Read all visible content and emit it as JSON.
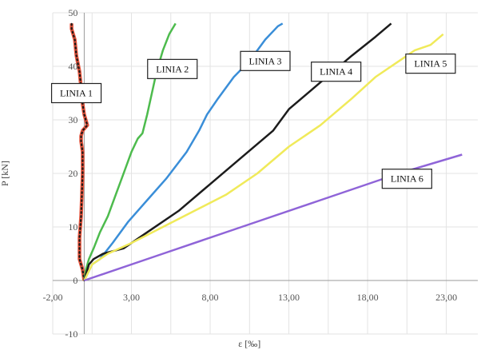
{
  "chart_data": {
    "type": "line",
    "title": "",
    "xlabel": "ε [‰]",
    "ylabel": "P [kN]",
    "xlim": [
      -2,
      25
    ],
    "ylim": [
      -10,
      50
    ],
    "x_ticks": [
      -2,
      3,
      8,
      13,
      18,
      23
    ],
    "x_tick_labels": [
      "-2,00",
      "3,00",
      "8,00",
      "13,00",
      "18,00",
      "23,00"
    ],
    "y_ticks": [
      -10,
      0,
      10,
      20,
      30,
      40,
      50
    ],
    "y_tick_labels": [
      "-10",
      "0",
      "10",
      "20",
      "30",
      "40",
      "50"
    ],
    "grid": true,
    "legend": "labels on lines",
    "series": [
      {
        "name": "LINIA 1",
        "color": "#e8553d",
        "dashed": true,
        "x": [
          0.0,
          -0.1,
          -0.3,
          -0.3,
          -0.2,
          -0.15,
          -0.1,
          -0.1,
          -0.2,
          -0.2,
          -0.1,
          0.2,
          0.0,
          -0.1,
          -0.2,
          -0.3,
          -0.5,
          -0.6,
          -0.8,
          -0.8
        ],
        "y": [
          0.0,
          2.0,
          4.0,
          8.0,
          12.0,
          16.0,
          20.0,
          24.0,
          26.0,
          27.0,
          28.0,
          29.0,
          31.0,
          33.0,
          36.0,
          39.0,
          42.0,
          45.0,
          47.0,
          48.0
        ]
      },
      {
        "name": "LINIA 2",
        "color": "#4dbb4d",
        "x": [
          0.0,
          0.1,
          0.3,
          0.6,
          1.0,
          1.5,
          2.0,
          2.5,
          3.0,
          3.4,
          3.7,
          4.0,
          4.3,
          4.6,
          5.0,
          5.4,
          5.8
        ],
        "y": [
          0.0,
          2.0,
          4.0,
          6.0,
          9.0,
          12.0,
          16.0,
          20.0,
          24.0,
          26.5,
          27.5,
          31.0,
          35.0,
          39.0,
          43.0,
          46.0,
          48.0
        ]
      },
      {
        "name": "LINIA 3",
        "color": "#3a8ed8",
        "x": [
          0.0,
          0.5,
          1.0,
          1.8,
          2.8,
          4.0,
          5.2,
          6.5,
          7.3,
          7.8,
          8.5,
          9.5,
          10.5,
          11.5,
          12.3,
          12.6
        ],
        "y": [
          0.0,
          3.0,
          4.0,
          7.0,
          11.0,
          15.0,
          19.0,
          24.0,
          28.0,
          31.0,
          34.0,
          38.0,
          41.0,
          45.0,
          47.5,
          48.0
        ]
      },
      {
        "name": "LINIA 4",
        "color": "#1c1c1c",
        "x": [
          0.0,
          0.3,
          0.6,
          1.2,
          2.5,
          4.0,
          6.0,
          8.0,
          10.0,
          12.0,
          13.0,
          15.0,
          17.0,
          18.5,
          19.5
        ],
        "y": [
          0.0,
          3.0,
          4.0,
          5.0,
          6.0,
          9.0,
          13.0,
          18.0,
          23.0,
          28.0,
          32.0,
          37.0,
          42.0,
          45.5,
          48.0
        ]
      },
      {
        "name": "LINIA 5",
        "color": "#f0ea5a",
        "x": [
          0.0,
          0.5,
          1.5,
          3.0,
          5.0,
          7.0,
          9.0,
          11.0,
          13.0,
          15.0,
          17.0,
          18.5,
          20.0,
          21.0,
          22.0,
          22.8
        ],
        "y": [
          0.0,
          3.0,
          5.0,
          7.0,
          10.0,
          13.0,
          16.0,
          20.0,
          25.0,
          29.0,
          34.0,
          38.0,
          41.0,
          43.0,
          44.0,
          46.0
        ]
      },
      {
        "name": "LINIA 6",
        "color": "#8f64d8",
        "x": [
          0.0,
          5.0,
          10.0,
          15.0,
          20.0,
          24.0
        ],
        "y": [
          0.0,
          5.0,
          10.0,
          15.0,
          20.0,
          23.5
        ]
      }
    ],
    "labels": [
      {
        "text": "LINIA 1",
        "x": -0.5,
        "y": 35.0
      },
      {
        "text": "LINIA 2",
        "x": 5.6,
        "y": 39.5
      },
      {
        "text": "LINIA 3",
        "x": 11.5,
        "y": 41.0
      },
      {
        "text": "LINIA 4",
        "x": 16.0,
        "y": 39.0
      },
      {
        "text": "LINIA 5",
        "x": 22.0,
        "y": 40.5
      },
      {
        "text": "LINIA 6",
        "x": 20.5,
        "y": 19.0
      }
    ]
  }
}
